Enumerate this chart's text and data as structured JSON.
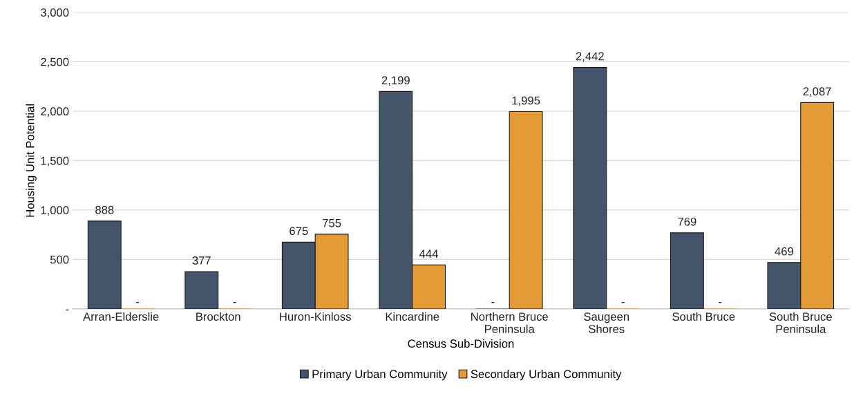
{
  "chart_data": {
    "type": "bar",
    "categories": [
      "Arran-Elderslie",
      "Brockton",
      "Huron-Kinloss",
      "Kincardine",
      "Northern Bruce\nPeninsula",
      "Saugeen\nShores",
      "South Bruce",
      "South Bruce\nPeninsula"
    ],
    "series": [
      {
        "name": "Primary Urban Community",
        "color": "#44546a",
        "values": [
          888,
          377,
          675,
          2199,
          0,
          2442,
          769,
          469
        ],
        "value_labels": [
          "888",
          "377",
          "675",
          "2,199",
          "-",
          "2,442",
          "769",
          "469"
        ]
      },
      {
        "name": "Secondary Urban Community",
        "color": "#e29b35",
        "values": [
          0,
          0,
          755,
          444,
          1995,
          0,
          0,
          2087
        ],
        "value_labels": [
          "-",
          "-",
          "755",
          "444",
          "1,995",
          "-",
          "-",
          "2,087"
        ]
      }
    ],
    "xlabel": "Census Sub-Division",
    "ylabel": "Housing Unit Potential",
    "ylim": [
      0,
      3000
    ],
    "yticks": [
      {
        "value": 0,
        "label": "-"
      },
      {
        "value": 500,
        "label": "500"
      },
      {
        "value": 1000,
        "label": "1,000"
      },
      {
        "value": 1500,
        "label": "1,500"
      },
      {
        "value": 2000,
        "label": "2,000"
      },
      {
        "value": 2500,
        "label": "2,500"
      },
      {
        "value": 3000,
        "label": "3,000"
      }
    ],
    "grid": "y",
    "legend": "bottom"
  }
}
